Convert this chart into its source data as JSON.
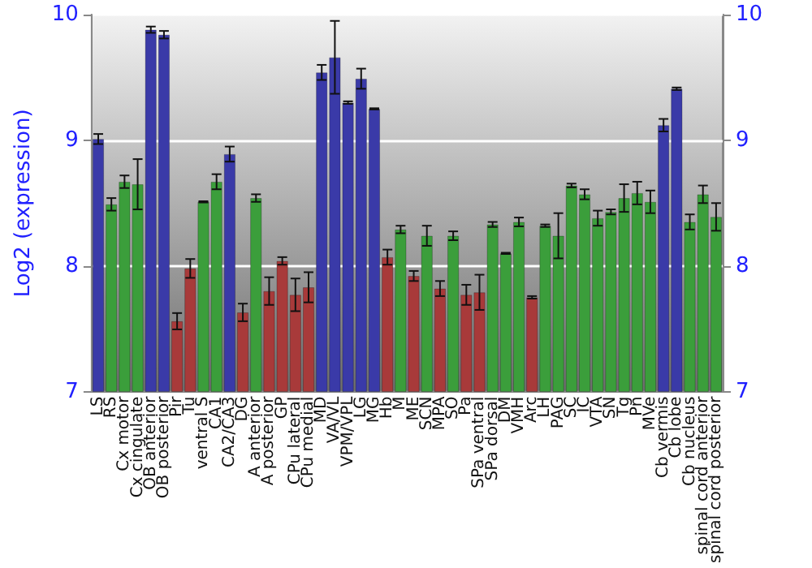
{
  "chart_data": {
    "type": "bar",
    "ylabel": "Log2 (expression)",
    "categories": [
      "LS",
      "RS",
      "Cx motor",
      "Cx cingulate",
      "OB anterior",
      "OB posterior",
      "Pir",
      "Tu",
      "ventral S",
      "CA1",
      "CA2/CA3",
      "DG",
      "A anterior",
      "A posterior",
      "GP",
      "CPu lateral",
      "CPu medial",
      "MD",
      "VA/VL",
      "VPM/VPL",
      "LG",
      "MG",
      "Hb",
      "M",
      "ME",
      "SCN",
      "MPA",
      "SO",
      "Pa",
      "SPa ventral",
      "SPa dorsal",
      "DM",
      "VMH",
      "Arc",
      "LH",
      "PAG",
      "SC",
      "IC",
      "VTA",
      "SN",
      "Tg",
      "Pn",
      "MVe",
      "Cb vermis",
      "Cb lobe",
      "Cb nucleus",
      "spinal cord anterior",
      "spinal cord posterior"
    ],
    "values": [
      9.01,
      8.49,
      8.67,
      8.65,
      9.88,
      9.84,
      7.56,
      7.98,
      8.51,
      8.67,
      8.89,
      7.63,
      8.54,
      7.8,
      8.04,
      7.77,
      7.83,
      9.54,
      9.66,
      9.3,
      9.49,
      9.25,
      8.07,
      8.29,
      7.92,
      8.24,
      7.82,
      8.24,
      7.77,
      7.79,
      8.33,
      8.1,
      8.35,
      7.75,
      8.32,
      8.24,
      8.64,
      8.57,
      8.38,
      8.43,
      8.54,
      8.58,
      8.51,
      9.12,
      9.41,
      8.35,
      8.57,
      8.39
    ],
    "errors": [
      0.04,
      0.05,
      0.05,
      0.2,
      0.025,
      0.03,
      0.065,
      0.075,
      0.005,
      0.06,
      0.06,
      0.07,
      0.03,
      0.11,
      0.03,
      0.13,
      0.12,
      0.06,
      0.29,
      0.01,
      0.08,
      0.005,
      0.06,
      0.03,
      0.04,
      0.08,
      0.06,
      0.035,
      0.08,
      0.14,
      0.02,
      0.005,
      0.035,
      0.01,
      0.01,
      0.18,
      0.015,
      0.04,
      0.06,
      0.02,
      0.11,
      0.09,
      0.09,
      0.05,
      0.01,
      0.06,
      0.07,
      0.11
    ],
    "colors": [
      "#3a3aa8",
      "#3b9e3b",
      "#3b9e3b",
      "#3b9e3b",
      "#3a3aa8",
      "#3a3aa8",
      "#a83a3a",
      "#a83a3a",
      "#3b9e3b",
      "#3b9e3b",
      "#3a3aa8",
      "#a83a3a",
      "#3b9e3b",
      "#a83a3a",
      "#a83a3a",
      "#a83a3a",
      "#a83a3a",
      "#3a3aa8",
      "#3a3aa8",
      "#3a3aa8",
      "#3a3aa8",
      "#3a3aa8",
      "#a83a3a",
      "#3b9e3b",
      "#a83a3a",
      "#3b9e3b",
      "#a83a3a",
      "#3b9e3b",
      "#a83a3a",
      "#a83a3a",
      "#3b9e3b",
      "#3b9e3b",
      "#3b9e3b",
      "#a83a3a",
      "#3b9e3b",
      "#3b9e3b",
      "#3b9e3b",
      "#3b9e3b",
      "#3b9e3b",
      "#3b9e3b",
      "#3b9e3b",
      "#3b9e3b",
      "#3b9e3b",
      "#3a3aa8",
      "#3a3aa8",
      "#3b9e3b",
      "#3b9e3b",
      "#3b9e3b"
    ],
    "ylim": [
      7,
      10
    ],
    "yticks": [
      7,
      8,
      9,
      10
    ],
    "y2lim": [
      7,
      10
    ],
    "y2ticks": [
      7,
      8,
      9,
      10
    ],
    "grid": "y"
  }
}
